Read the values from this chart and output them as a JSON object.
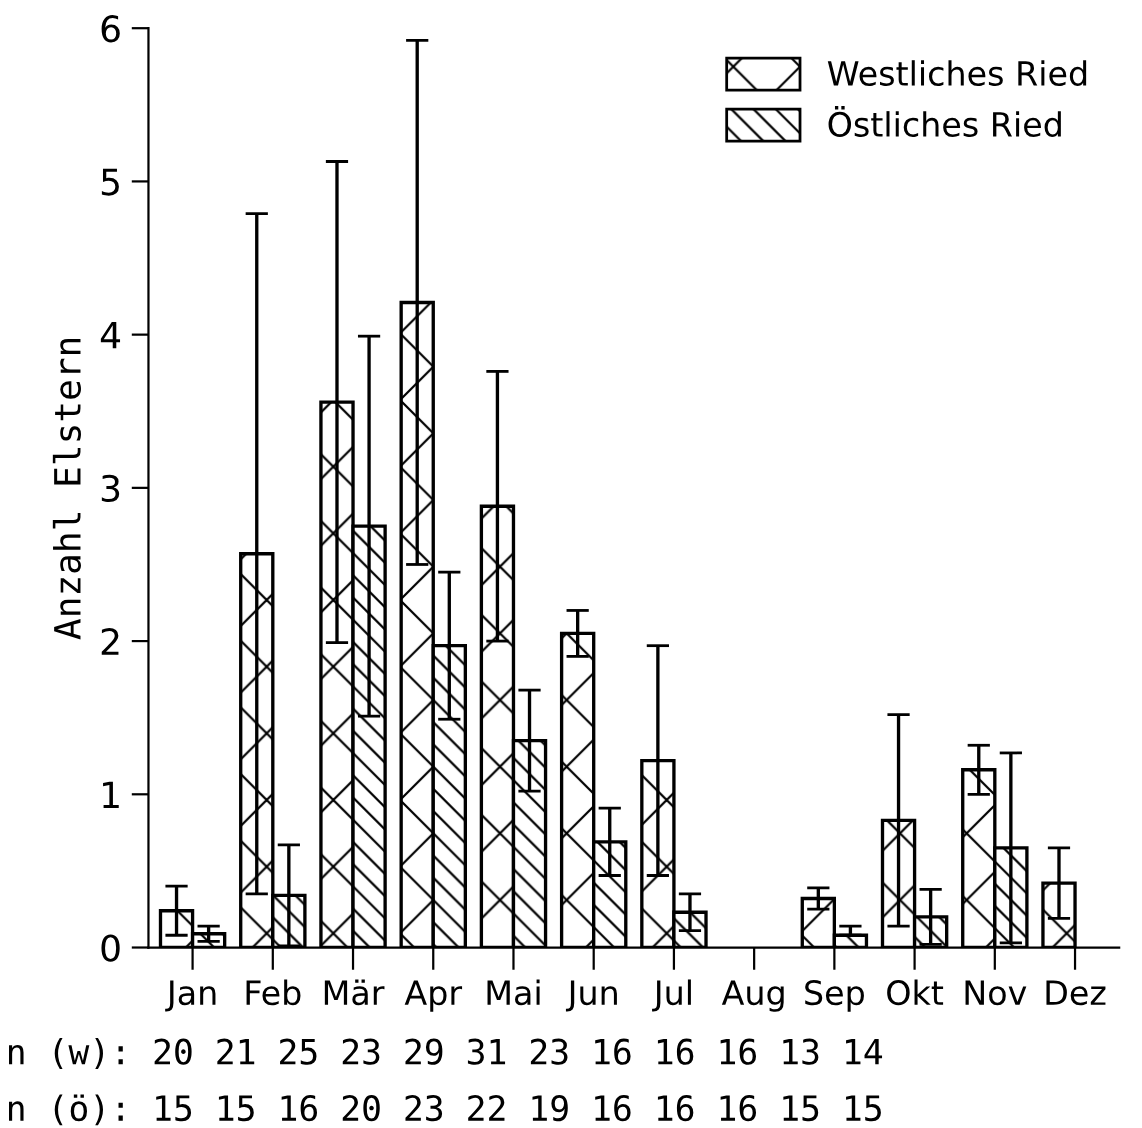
{
  "chart_data": {
    "type": "bar",
    "ylabel": "Anzahl Elstern",
    "categories": [
      "Jan",
      "Feb",
      "Mär",
      "Apr",
      "Mai",
      "Jun",
      "Jul",
      "Aug",
      "Sep",
      "Okt",
      "Nov",
      "Dez"
    ],
    "series": [
      {
        "name": "Westliches Ried",
        "values": [
          0.24,
          2.57,
          3.56,
          4.21,
          2.88,
          2.05,
          1.22,
          null,
          0.32,
          0.83,
          1.16,
          0.42
        ],
        "errors": [
          0.16,
          2.22,
          1.57,
          1.71,
          0.88,
          0.15,
          0.75,
          null,
          0.07,
          0.69,
          0.16,
          0.23
        ]
      },
      {
        "name": "Östliches Ried",
        "values": [
          0.09,
          0.34,
          2.75,
          1.97,
          1.35,
          0.69,
          0.23,
          null,
          0.08,
          0.2,
          0.65,
          null
        ],
        "errors": [
          0.05,
          0.33,
          1.24,
          0.48,
          0.33,
          0.22,
          0.12,
          null,
          [
            0.08,
            0.14
          ],
          0.18,
          0.62,
          null
        ]
      }
    ],
    "ylim": [
      0,
      6
    ],
    "yticks": [
      0,
      1,
      2,
      3,
      4,
      5,
      6
    ],
    "grid": false,
    "legend": "top right",
    "annotations": [
      "n (w): 20 21 25 23 29 31 23 16 16 16 13 14",
      "n (ö): 15 15 16 20 23 22 19 16 16 16 15 15"
    ]
  }
}
